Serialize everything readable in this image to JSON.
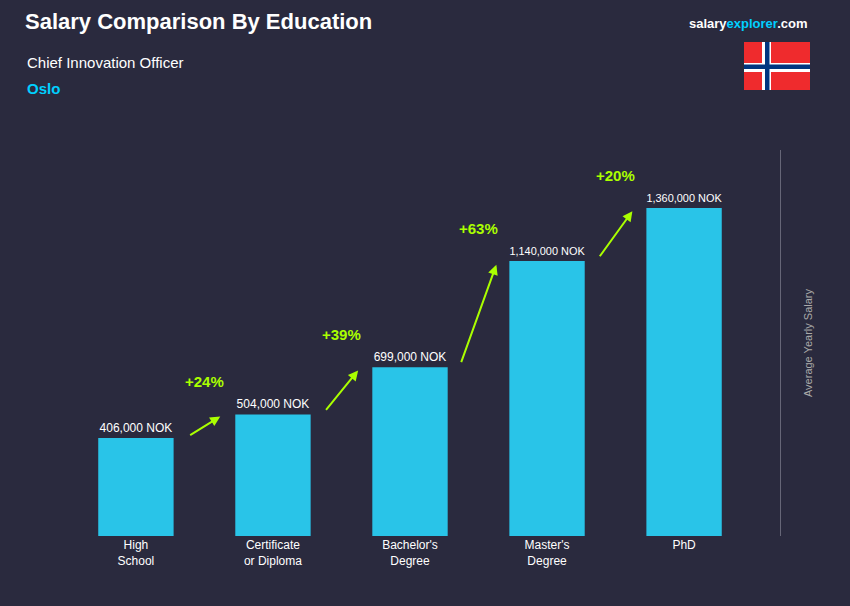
{
  "chart_data": {
    "type": "bar",
    "title": "Salary Comparison By Education",
    "subtitle": "Chief Innovation Officer",
    "location": {
      "text": "Oslo",
      "color": "#00cfff"
    },
    "brand": [
      {
        "text": "salary",
        "color": "#ffffff"
      },
      {
        "text": "explorer",
        "color": "#00cfff"
      },
      {
        "text": ".com",
        "color": "#ffffff"
      }
    ],
    "ylabel": "Average Yearly Salary",
    "categories": [
      "High\nSchool",
      "Certificate\nor Diploma",
      "Bachelor's\nDegree",
      "Master's\nDegree",
      "PhD"
    ],
    "values": [
      406000,
      504000,
      699000,
      1140000,
      1360000
    ],
    "value_labels": [
      "406,000 NOK",
      "504,000 NOK",
      "699,000 NOK",
      "1,140,000 NOK",
      "1,360,000 NOK"
    ],
    "data_labels": true,
    "color": "#29c4e8",
    "annotations": [
      {
        "text": "+24%",
        "color": "#aaff00"
      },
      {
        "text": "+39%",
        "color": "#aaff00"
      },
      {
        "text": "+63%",
        "color": "#aaff00"
      },
      {
        "text": "+20%",
        "color": "#aaff00"
      }
    ],
    "ylim": [
      0,
      1600000
    ],
    "grid": false,
    "tick_labels": "x"
  }
}
